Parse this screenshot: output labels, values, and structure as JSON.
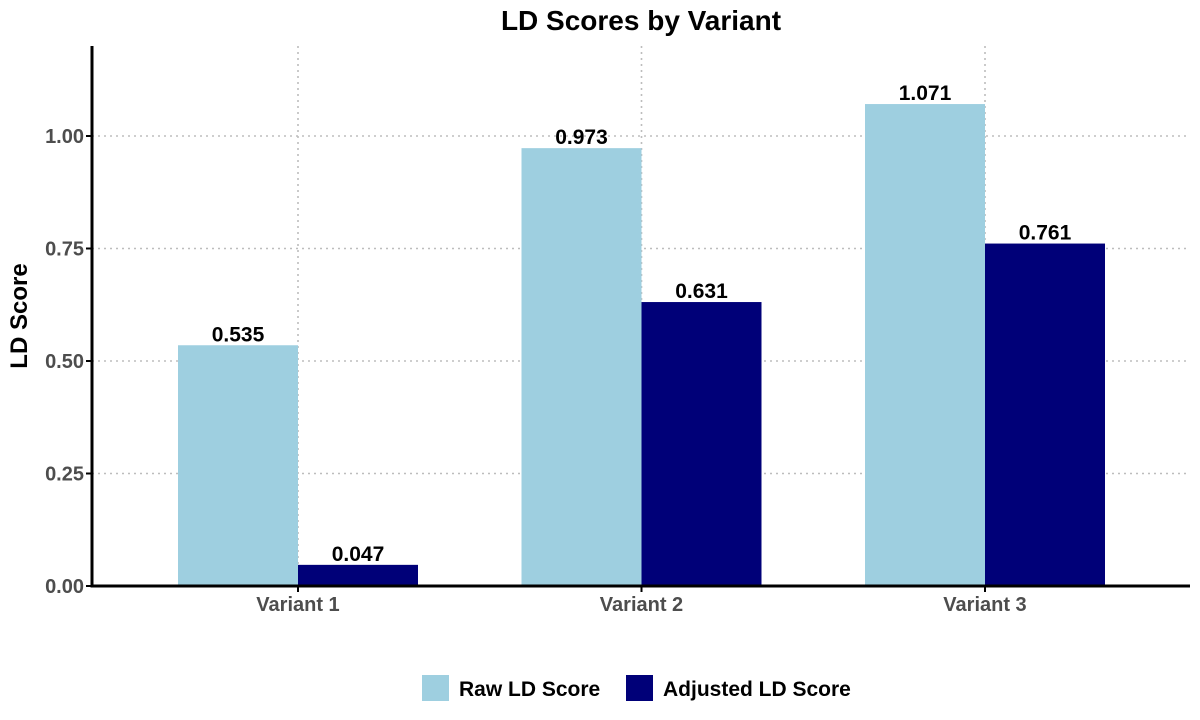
{
  "chart_data": {
    "type": "bar",
    "title": "LD Scores by Variant",
    "xlabel": "",
    "ylabel": "LD Score",
    "categories": [
      "Variant 1",
      "Variant 2",
      "Variant 3"
    ],
    "series": [
      {
        "name": "Raw LD Score",
        "color": "#9ecfe0",
        "values": [
          0.535,
          0.973,
          1.071
        ]
      },
      {
        "name": "Adjusted LD Score",
        "color": "#000078",
        "values": [
          0.047,
          0.631,
          0.761
        ]
      }
    ],
    "value_labels": [
      [
        "0.535",
        "0.973",
        "1.071"
      ],
      [
        "0.047",
        "0.631",
        "0.761"
      ]
    ],
    "ylim": [
      0,
      1.2
    ],
    "yticks": [
      0,
      0.25,
      0.5,
      0.75,
      1.0
    ],
    "ytick_labels": [
      "0.00",
      "0.25",
      "0.50",
      "0.75",
      "1.00"
    ],
    "grid": true,
    "legend_position": "bottom"
  }
}
